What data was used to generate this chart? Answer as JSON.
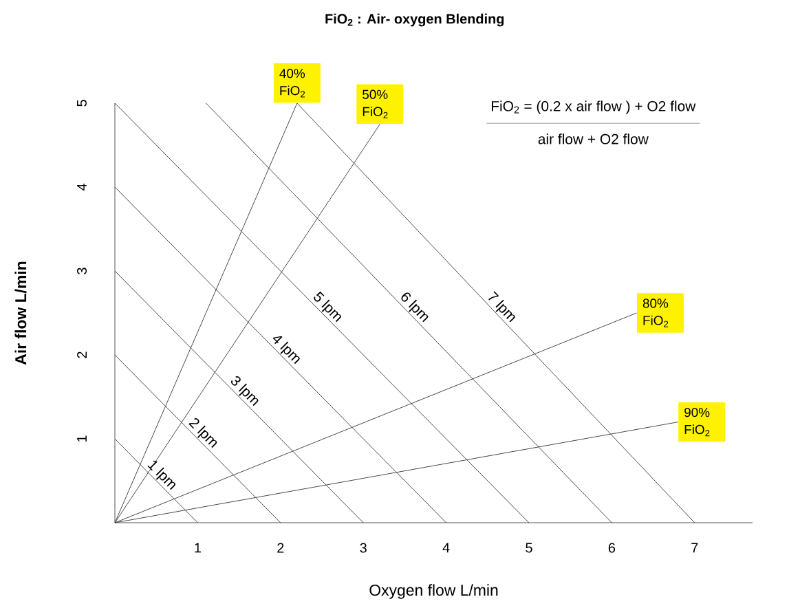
{
  "chart_data": {
    "type": "line",
    "title": "FiO$_{2}$ : Air- oxygen Blending",
    "xlabel": "Oxygen flow L/min",
    "ylabel": "Air flow L/min",
    "xlim": [
      0,
      7.7
    ],
    "ylim": [
      0,
      5
    ],
    "xticks": [
      1,
      2,
      3,
      4,
      5,
      6,
      7
    ],
    "yticks": [
      1,
      2,
      3,
      4,
      5
    ],
    "grid": false,
    "marker": "none",
    "line_style": "solid",
    "annotations": [
      "FiO$_{2}$ = (0.2 x air flow ) + O2 flow",
      "air flow + O2 flow"
    ],
    "series": [
      {
        "name": "1 lpm",
        "color": "#333333",
        "x": [
          0,
          1
        ],
        "values": [
          1,
          0
        ]
      },
      {
        "name": "2 lpm",
        "color": "#333333",
        "x": [
          0,
          2
        ],
        "values": [
          2,
          0
        ]
      },
      {
        "name": "3 lpm",
        "color": "#333333",
        "x": [
          0,
          3
        ],
        "values": [
          3,
          0
        ]
      },
      {
        "name": "4 lpm",
        "color": "#333333",
        "x": [
          0,
          4
        ],
        "values": [
          4,
          0
        ]
      },
      {
        "name": "5 lpm",
        "color": "#333333",
        "x": [
          0,
          5
        ],
        "values": [
          5,
          0
        ]
      },
      {
        "name": "6 lpm",
        "color": "#333333",
        "x": [
          1.1,
          6
        ],
        "values": [
          5,
          0
        ]
      },
      {
        "name": "7 lpm",
        "color": "#333333",
        "x": [
          2.2,
          7
        ],
        "values": [
          5,
          0
        ]
      },
      {
        "name": "40% FiO$_{2}$",
        "color": "#333333",
        "x": [
          0,
          2.2
        ],
        "values": [
          0,
          5
        ]
      },
      {
        "name": "50% FiO$_{2}$",
        "color": "#333333",
        "x": [
          0,
          3.2
        ],
        "values": [
          0,
          4.75
        ]
      },
      {
        "name": "80% FiO$_{2}$",
        "color": "#333333",
        "x": [
          0,
          6.3
        ],
        "values": [
          0,
          2.5
        ]
      },
      {
        "name": "90% FiO$_{2}$",
        "color": "#333333",
        "x": [
          0,
          6.8
        ],
        "values": [
          0,
          1.2
        ]
      }
    ]
  }
}
